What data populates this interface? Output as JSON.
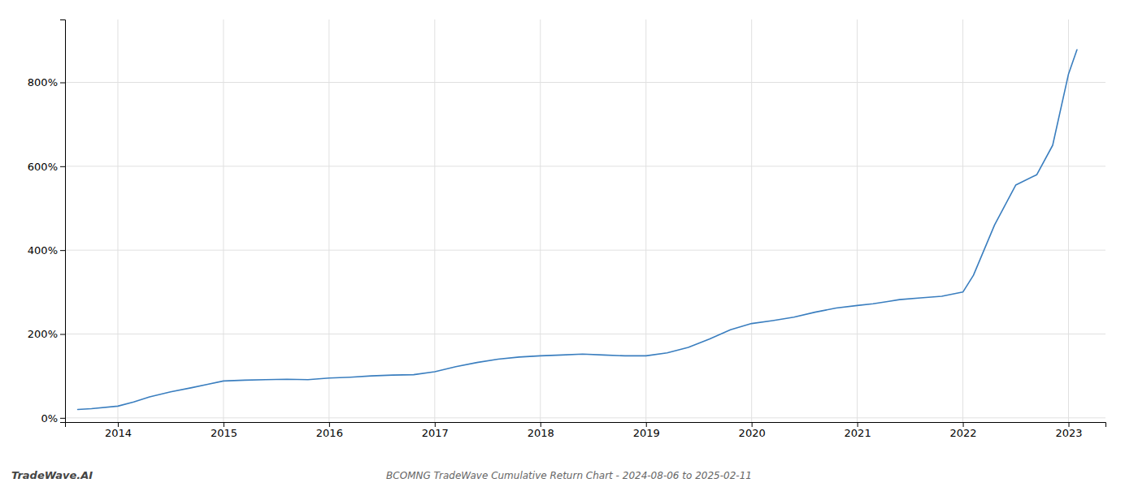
{
  "chart_data": {
    "type": "line",
    "title": "BCOMNG TradeWave Cumulative Return Chart - 2024-08-06 to 2025-02-11",
    "annotations": [
      "TradeWave.AI"
    ],
    "color": "#3a7ebf",
    "x": [
      2013.62,
      2013.75,
      2014.0,
      2014.15,
      2014.3,
      2014.5,
      2014.7,
      2014.85,
      2015.0,
      2015.2,
      2015.4,
      2015.6,
      2015.8,
      2016.0,
      2016.2,
      2016.4,
      2016.6,
      2016.8,
      2017.0,
      2017.2,
      2017.4,
      2017.6,
      2017.8,
      2018.0,
      2018.2,
      2018.4,
      2018.6,
      2018.8,
      2019.0,
      2019.2,
      2019.4,
      2019.6,
      2019.8,
      2020.0,
      2020.2,
      2020.4,
      2020.6,
      2020.8,
      2021.0,
      2021.15,
      2021.3,
      2021.4,
      2021.6,
      2021.8,
      2022.0,
      2022.1,
      2022.2,
      2022.3,
      2022.5,
      2022.7,
      2022.85,
      2023.0,
      2023.08
    ],
    "values": [
      20,
      22,
      28,
      38,
      50,
      62,
      72,
      80,
      88,
      90,
      91,
      92,
      91,
      95,
      97,
      100,
      102,
      103,
      110,
      122,
      132,
      140,
      145,
      148,
      150,
      152,
      150,
      148,
      148,
      155,
      168,
      188,
      210,
      225,
      232,
      240,
      252,
      262,
      268,
      272,
      278,
      282,
      286,
      290,
      300,
      340,
      400,
      460,
      555,
      580,
      650,
      820,
      878
    ],
    "xlim": [
      2013.5,
      2023.35
    ],
    "ylim": [
      -10,
      950
    ],
    "xticks": [
      2014,
      2015,
      2016,
      2017,
      2018,
      2019,
      2020,
      2021,
      2022,
      2023
    ],
    "yticks": [
      {
        "value": 0,
        "label": "0%"
      },
      {
        "value": 200,
        "label": "200%"
      },
      {
        "value": 400,
        "label": "400%"
      },
      {
        "value": 600,
        "label": "600%"
      },
      {
        "value": 800,
        "label": "800%"
      }
    ],
    "grid": true
  }
}
